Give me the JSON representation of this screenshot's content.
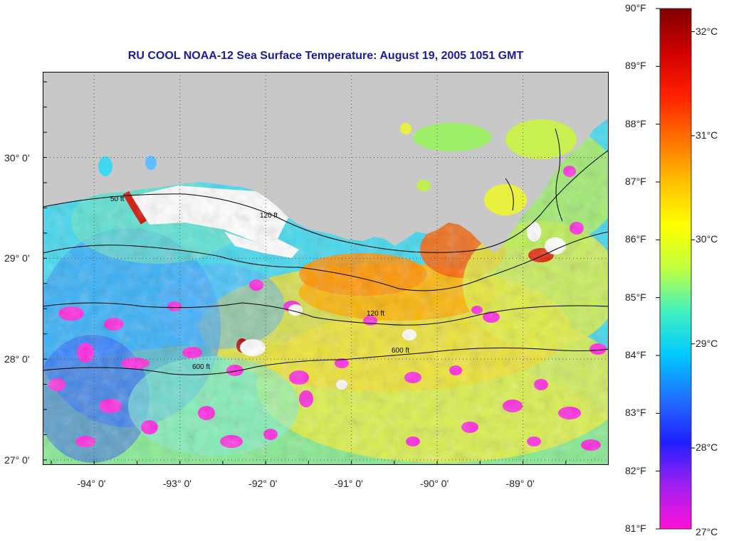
{
  "title": "RU COOL  NOAA-12  Sea Surface Temperature:  August 19, 2005 1051 GMT",
  "map": {
    "lon_range": [
      -94.6,
      -88.0
    ],
    "lat_range": [
      26.95,
      30.85
    ],
    "lon_labels": [
      "-94° 0'",
      "-93° 0'",
      "-92° 0'",
      "-91° 0'",
      "-90° 0'",
      "-89° 0'"
    ],
    "lon_values": [
      -94,
      -93,
      -92,
      -91,
      -90,
      -89
    ],
    "lat_labels": [
      "30° 0'",
      "29° 0'",
      "28° 0'",
      "27° 0'"
    ],
    "lat_values": [
      30,
      29,
      28,
      27
    ],
    "colors": {
      "land": "#c8c8c8",
      "cloud": "#ffffff",
      "cold": "#ff28e0",
      "gridline": "#555555"
    },
    "contour_labels": [
      "50 ft",
      "120 ft",
      "600 ft"
    ]
  },
  "colorbar": {
    "fahrenheit_labels": [
      "90°F",
      "89°F",
      "88°F",
      "87°F",
      "86°F",
      "85°F",
      "84°F",
      "83°F",
      "82°F",
      "81°F"
    ],
    "fahrenheit_values": [
      90,
      89,
      88,
      87,
      86,
      85,
      84,
      83,
      82,
      81
    ],
    "celsius_labels": [
      "32°C",
      "31°C",
      "30°C",
      "29°C",
      "28°C",
      "27°C"
    ],
    "celsius_values": [
      32,
      31,
      30,
      29,
      28,
      27
    ],
    "range_f": [
      81,
      90
    ],
    "stops": [
      "#ff10d8",
      "#a020f0",
      "#2020ff",
      "#2070ff",
      "#00c8ff",
      "#40f0c0",
      "#c0ff40",
      "#ffff00",
      "#ffc000",
      "#ff7000",
      "#ff2000",
      "#d00000",
      "#800000"
    ]
  }
}
